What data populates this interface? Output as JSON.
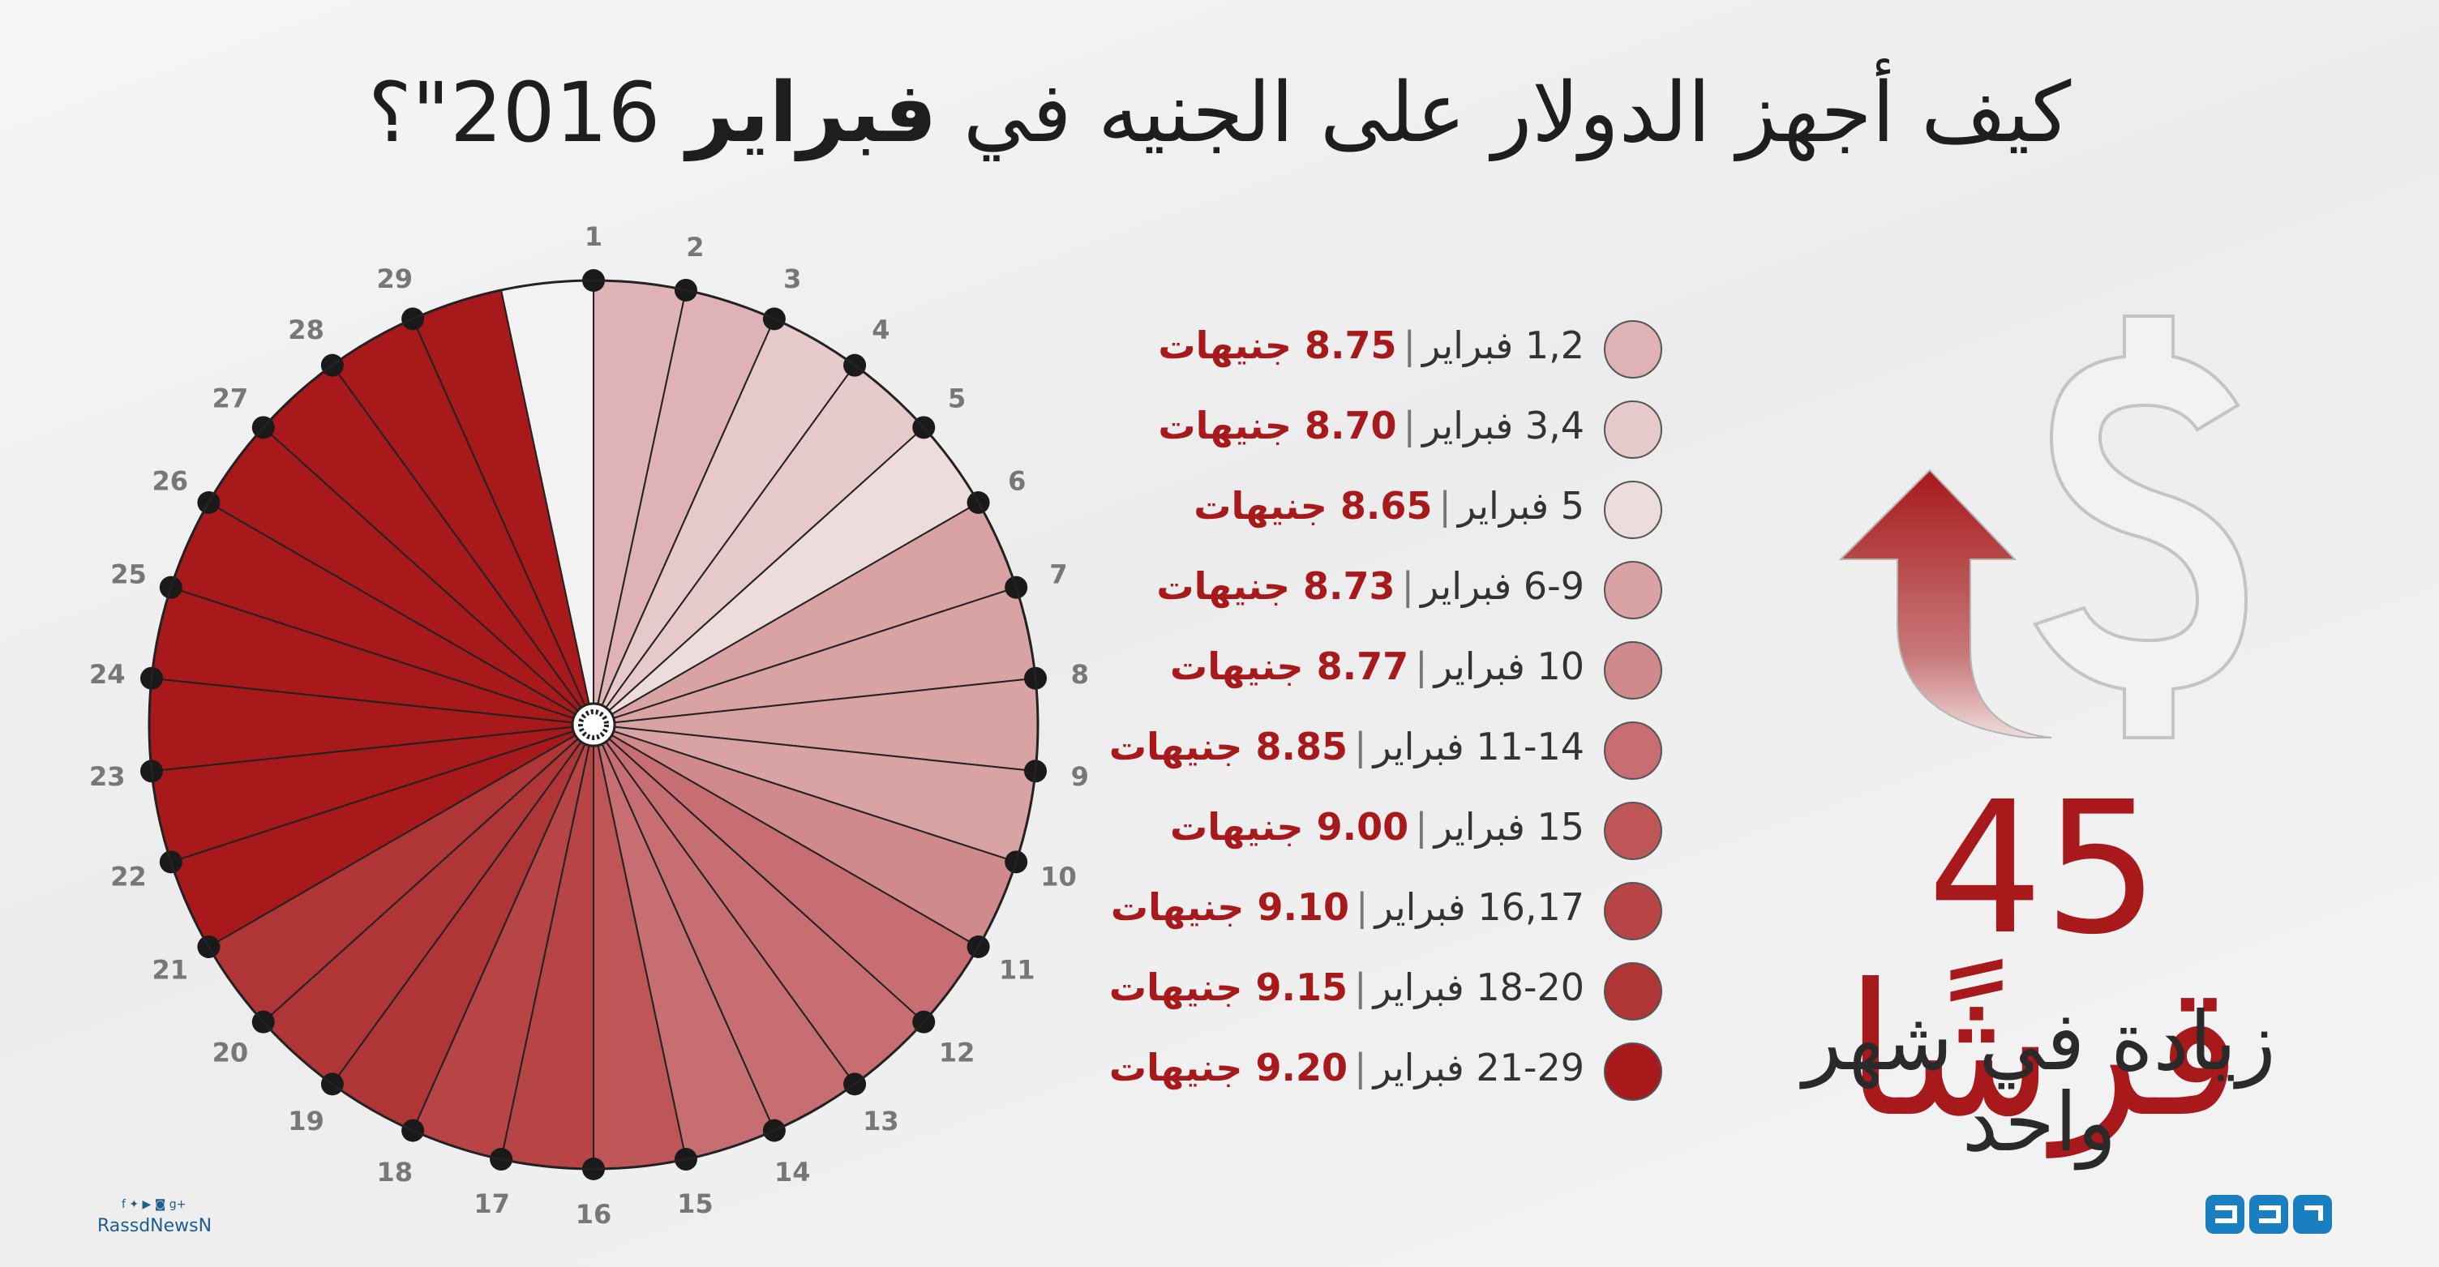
{
  "title": {
    "part1": "كيف أجهز الدولار على الجنيه في ",
    "bold": "فبراير",
    "part2": " 2016\"؟"
  },
  "chart_data": {
    "type": "pie",
    "title": "كيف أجهز الدولار على الجنيه في \"فبراير 2016\"؟",
    "days": [
      1,
      2,
      3,
      4,
      5,
      6,
      7,
      8,
      9,
      10,
      11,
      12,
      13,
      14,
      15,
      16,
      17,
      18,
      19,
      20,
      21,
      22,
      23,
      24,
      25,
      26,
      27,
      28,
      29
    ],
    "tiers": [
      {
        "label": "1,2 فبراير",
        "price": "8.75 جنيهات",
        "value": 8.75,
        "days": [
          1,
          2
        ],
        "color": "#dfb3b5"
      },
      {
        "label": "3,4 فبراير",
        "price": "8.70 جنيهات",
        "value": 8.7,
        "days": [
          3,
          4
        ],
        "color": "#e6c9ca"
      },
      {
        "label": "5 فبراير",
        "price": "8.65 جنيهات",
        "value": 8.65,
        "days": [
          5
        ],
        "color": "#ecdcdc"
      },
      {
        "label": "6-9 فبراير",
        "price": "8.73 جنيهات",
        "value": 8.73,
        "days": [
          6,
          7,
          8,
          9
        ],
        "color": "#d9a3a4"
      },
      {
        "label": "10 فبراير",
        "price": "8.77 جنيهات",
        "value": 8.77,
        "days": [
          10
        ],
        "color": "#d08a8c"
      },
      {
        "label": "11-14 فبراير",
        "price": "8.85 جنيهات",
        "value": 8.85,
        "days": [
          11,
          12,
          13,
          14
        ],
        "color": "#c66e71"
      },
      {
        "label": "15 فبراير",
        "price": "9.00 جنيهات",
        "value": 9.0,
        "days": [
          15
        ],
        "color": "#be5658"
      },
      {
        "label": "16,17 فبراير",
        "price": "9.10 جنيهات",
        "value": 9.1,
        "days": [
          16,
          17
        ],
        "color": "#b74546"
      },
      {
        "label": "18-20 فبراير",
        "price": "9.15 جنيهات",
        "value": 9.15,
        "days": [
          18,
          19,
          20
        ],
        "color": "#b03537"
      },
      {
        "label": "21-29 فبراير",
        "price": "9.20 جنيهات",
        "value": 9.2,
        "days": [
          21,
          22,
          23,
          24,
          25,
          26,
          27,
          28,
          29
        ],
        "color": "#a8191b"
      }
    ]
  },
  "summary": {
    "amount": "45 قرشًا",
    "subtitle": "زيادة في شهر واحد"
  },
  "colors": {
    "accent": "#a8191b",
    "missing_day": "#f2f2f2"
  },
  "footer": {
    "handle": "RassdNewsN",
    "icons": "f ✦ ▶ ◙ g+"
  }
}
